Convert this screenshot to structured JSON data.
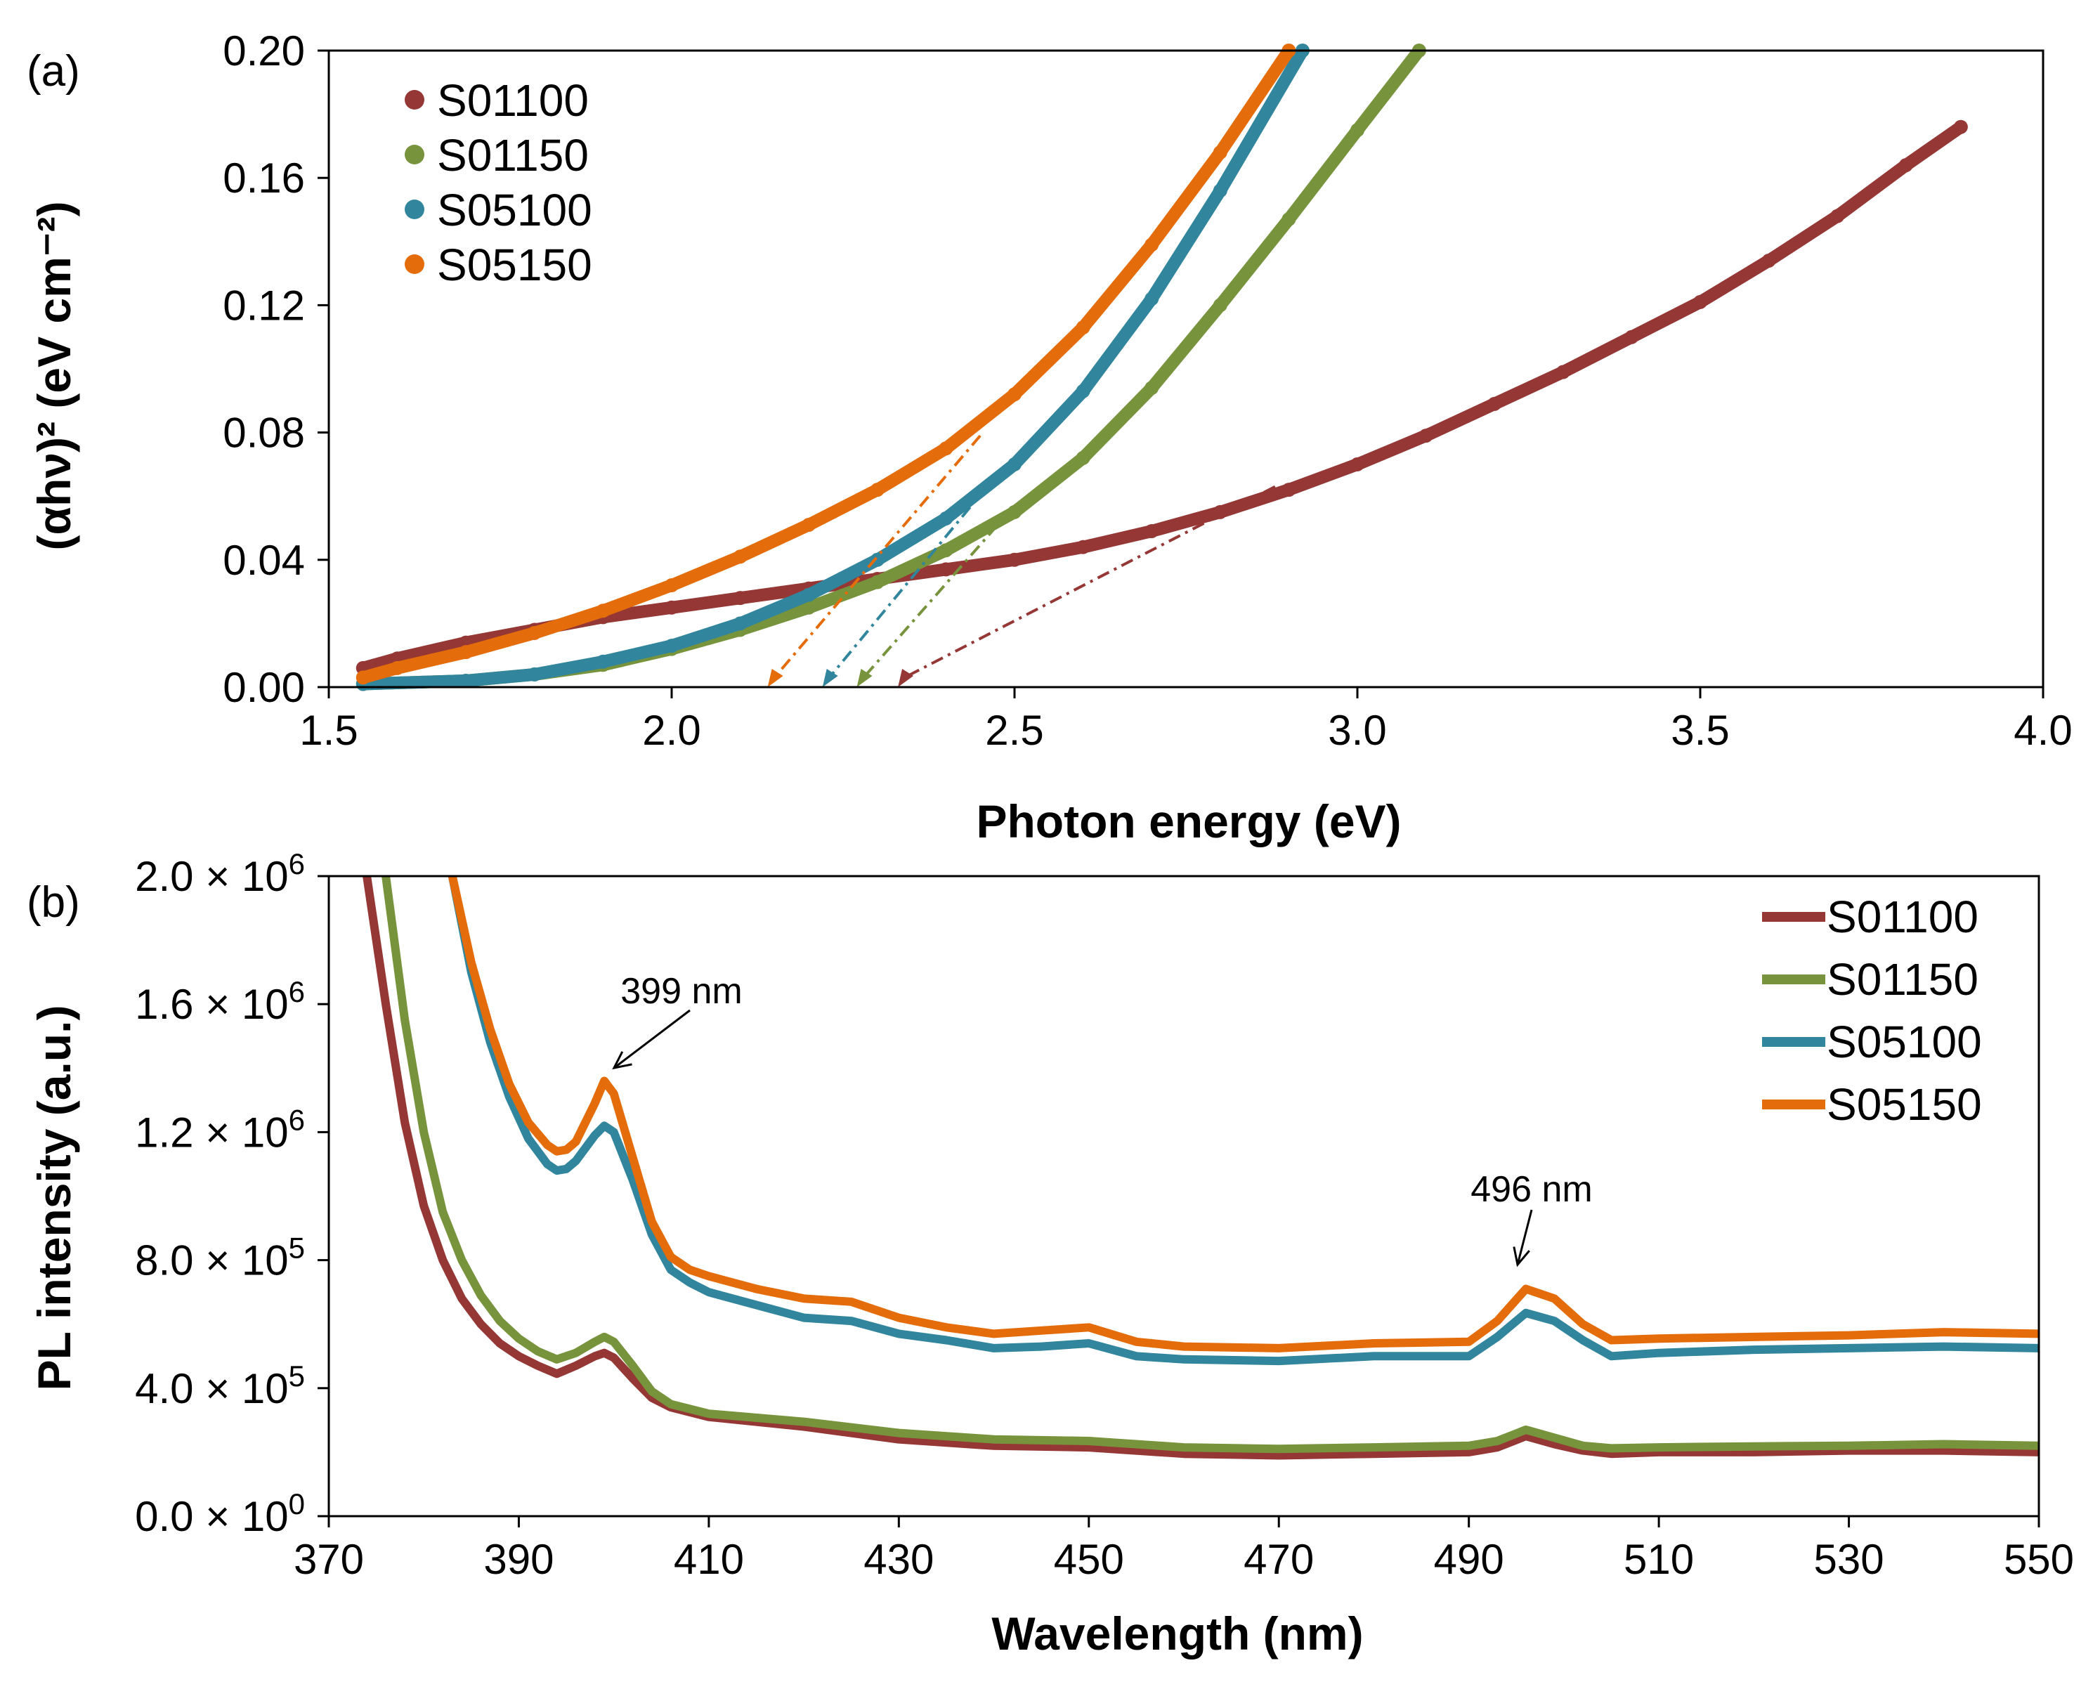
{
  "chart_data": [
    {
      "type": "scatter",
      "panel_label": "(a)",
      "title": "",
      "xlabel": "Photon energy (eV)",
      "ylabel": "(αhν)² (eV cm⁻²)",
      "xlim": [
        1.5,
        4.0
      ],
      "ylim": [
        0.0,
        0.2
      ],
      "x_ticks": [
        "1.5",
        "2.0",
        "2.5",
        "3.0",
        "3.5",
        "4.0"
      ],
      "y_ticks": [
        "0.00",
        "0.04",
        "0.08",
        "0.12",
        "0.16",
        "0.20"
      ],
      "legend_position": "top-left",
      "series": [
        {
          "name": "S01100",
          "color": "#953735",
          "x": [
            1.55,
            1.6,
            1.7,
            1.8,
            1.9,
            2.0,
            2.1,
            2.2,
            2.3,
            2.4,
            2.5,
            2.6,
            2.7,
            2.8,
            2.9,
            3.0,
            3.1,
            3.2,
            3.3,
            3.4,
            3.5,
            3.6,
            3.7,
            3.8,
            3.88
          ],
          "y": [
            0.006,
            0.009,
            0.014,
            0.018,
            0.022,
            0.025,
            0.028,
            0.031,
            0.034,
            0.037,
            0.04,
            0.044,
            0.049,
            0.055,
            0.062,
            0.07,
            0.079,
            0.089,
            0.099,
            0.11,
            0.121,
            0.134,
            0.148,
            0.164,
            0.176
          ],
          "tangent": {
            "x": [
              2.33,
              2.88
            ],
            "y": [
              0.0,
              0.063
            ],
            "intercept_eV": 2.33
          }
        },
        {
          "name": "S01150",
          "color": "#77933C",
          "x": [
            1.55,
            1.7,
            1.8,
            1.9,
            2.0,
            2.1,
            2.2,
            2.3,
            2.4,
            2.5,
            2.6,
            2.7,
            2.8,
            2.9,
            3.0,
            3.09
          ],
          "y": [
            0.001,
            0.002,
            0.004,
            0.007,
            0.012,
            0.018,
            0.025,
            0.033,
            0.043,
            0.055,
            0.072,
            0.094,
            0.12,
            0.147,
            0.175,
            0.2
          ],
          "tangent": {
            "x": [
              2.27,
              2.5
            ],
            "y": [
              0.0,
              0.057
            ],
            "intercept_eV": 2.27
          }
        },
        {
          "name": "S05100",
          "color": "#31859C",
          "x": [
            1.55,
            1.7,
            1.8,
            1.9,
            2.0,
            2.1,
            2.2,
            2.3,
            2.4,
            2.5,
            2.6,
            2.7,
            2.8,
            2.92
          ],
          "y": [
            0.001,
            0.002,
            0.004,
            0.008,
            0.013,
            0.02,
            0.029,
            0.04,
            0.053,
            0.07,
            0.093,
            0.122,
            0.156,
            0.2
          ],
          "tangent": {
            "x": [
              2.22,
              2.46
            ],
            "y": [
              0.0,
              0.063
            ],
            "intercept_eV": 2.22
          }
        },
        {
          "name": "S05150",
          "color": "#E46C0A",
          "x": [
            1.55,
            1.6,
            1.7,
            1.8,
            1.9,
            2.0,
            2.1,
            2.2,
            2.3,
            2.4,
            2.5,
            2.6,
            2.7,
            2.8,
            2.9
          ],
          "y": [
            0.003,
            0.006,
            0.011,
            0.017,
            0.024,
            0.032,
            0.041,
            0.051,
            0.062,
            0.075,
            0.092,
            0.113,
            0.139,
            0.168,
            0.2
          ],
          "tangent": {
            "x": [
              2.14,
              2.45
            ],
            "y": [
              0.0,
              0.079
            ],
            "intercept_eV": 2.14
          }
        }
      ]
    },
    {
      "type": "line",
      "panel_label": "(b)",
      "title": "",
      "xlabel": "Wavelength (nm)",
      "ylabel": "PL intensity (a.u.)",
      "xlim": [
        370,
        550
      ],
      "ylim": [
        0,
        2000000
      ],
      "x_ticks": [
        "370",
        "390",
        "410",
        "430",
        "450",
        "470",
        "490",
        "510",
        "530",
        "550"
      ],
      "y_ticks": [
        {
          "mantissa": "0.0",
          "exponent": "0"
        },
        {
          "mantissa": "4.0",
          "exponent": "5"
        },
        {
          "mantissa": "8.0",
          "exponent": "5"
        },
        {
          "mantissa": "1.2",
          "exponent": "6"
        },
        {
          "mantissa": "1.6",
          "exponent": "6"
        },
        {
          "mantissa": "2.0",
          "exponent": "6"
        }
      ],
      "tick_separator": "×",
      "tick_base": "10",
      "legend_position": "top-right",
      "annotations": [
        {
          "text": "399 nm",
          "x": 399,
          "y": 1360000
        },
        {
          "text": "496 nm",
          "x": 496,
          "y": 710000
        }
      ],
      "series": [
        {
          "name": "S01100",
          "color": "#953735",
          "x": [
            374,
            376,
            378,
            380,
            382,
            384,
            386,
            388,
            390,
            392,
            394,
            396,
            398,
            399,
            400,
            402,
            404,
            406,
            410,
            420,
            430,
            440,
            450,
            460,
            470,
            480,
            490,
            493,
            496,
            499,
            502,
            505,
            510,
            520,
            530,
            540,
            550
          ],
          "y": [
            2000000,
            1600000,
            1230000,
            970000,
            800000,
            680000,
            600000,
            540000,
            500000,
            470000,
            445000,
            470000,
            500000,
            510000,
            495000,
            430000,
            370000,
            340000,
            310000,
            280000,
            240000,
            220000,
            215000,
            195000,
            190000,
            195000,
            200000,
            215000,
            250000,
            225000,
            205000,
            195000,
            200000,
            200000,
            205000,
            205000,
            200000
          ]
        },
        {
          "name": "S01150",
          "color": "#77933C",
          "x": [
            376,
            378,
            380,
            382,
            384,
            386,
            388,
            390,
            392,
            394,
            396,
            398,
            399,
            400,
            402,
            404,
            406,
            410,
            420,
            430,
            440,
            450,
            460,
            470,
            480,
            490,
            493,
            496,
            499,
            502,
            505,
            510,
            520,
            530,
            540,
            550
          ],
          "y": [
            2000000,
            1550000,
            1200000,
            950000,
            800000,
            690000,
            610000,
            555000,
            515000,
            490000,
            510000,
            545000,
            560000,
            545000,
            470000,
            390000,
            350000,
            320000,
            295000,
            260000,
            240000,
            235000,
            215000,
            210000,
            215000,
            220000,
            235000,
            270000,
            245000,
            220000,
            212000,
            215000,
            218000,
            220000,
            225000,
            220000
          ]
        },
        {
          "name": "S05100",
          "color": "#31859C",
          "x": [
            383,
            385,
            387,
            389,
            391,
            393,
            394,
            395,
            396,
            398,
            399,
            400,
            402,
            404,
            406,
            408,
            410,
            415,
            420,
            425,
            430,
            435,
            440,
            445,
            450,
            455,
            460,
            470,
            480,
            490,
            493,
            496,
            499,
            502,
            505,
            510,
            520,
            530,
            540,
            550
          ],
          "y": [
            2000000,
            1700000,
            1480000,
            1310000,
            1180000,
            1100000,
            1080000,
            1085000,
            1110000,
            1190000,
            1220000,
            1200000,
            1050000,
            880000,
            770000,
            730000,
            700000,
            660000,
            620000,
            610000,
            570000,
            550000,
            525000,
            530000,
            540000,
            500000,
            490000,
            485000,
            500000,
            500000,
            560000,
            635000,
            610000,
            550000,
            500000,
            510000,
            520000,
            525000,
            530000,
            525000
          ]
        },
        {
          "name": "S05150",
          "color": "#E46C0A",
          "x": [
            383,
            385,
            387,
            389,
            391,
            393,
            394,
            395,
            396,
            398,
            399,
            400,
            402,
            404,
            406,
            408,
            410,
            415,
            420,
            425,
            430,
            435,
            440,
            445,
            450,
            455,
            460,
            470,
            480,
            490,
            493,
            496,
            499,
            502,
            505,
            510,
            520,
            530,
            540,
            550
          ],
          "y": [
            2000000,
            1730000,
            1520000,
            1350000,
            1230000,
            1160000,
            1140000,
            1145000,
            1170000,
            1290000,
            1360000,
            1320000,
            1120000,
            920000,
            810000,
            770000,
            750000,
            710000,
            680000,
            670000,
            620000,
            590000,
            570000,
            580000,
            590000,
            545000,
            530000,
            525000,
            540000,
            545000,
            610000,
            710000,
            680000,
            600000,
            550000,
            555000,
            560000,
            565000,
            575000,
            570000
          ]
        }
      ]
    }
  ]
}
